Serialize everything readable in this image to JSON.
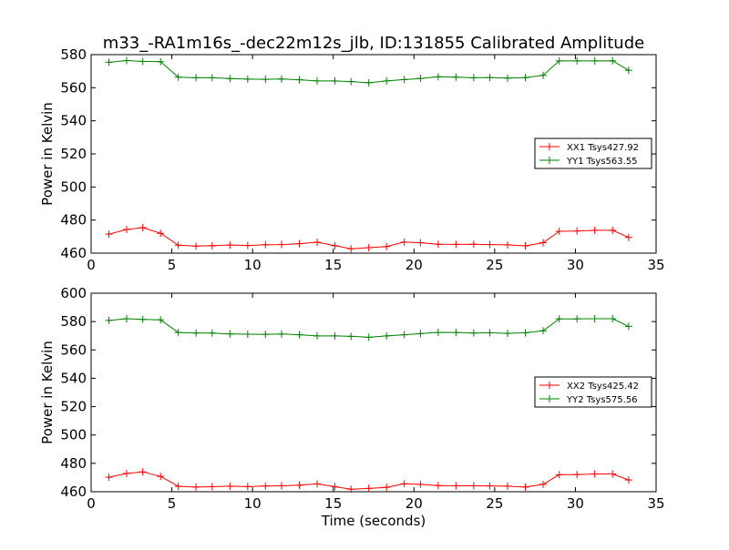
{
  "figure": {
    "title": "m33_-RA1m16s_-dec22m12s_jlb, ID:131855 Calibrated Amplitude"
  },
  "chart_data": [
    {
      "type": "line",
      "title": "m33_-RA1m16s_-dec22m12s_jlb, ID:131855 Calibrated Amplitude",
      "xlabel": "",
      "ylabel": "Power in Kelvin",
      "xlim": [
        0,
        35
      ],
      "ylim": [
        460,
        580
      ],
      "xticks": [
        0,
        5,
        10,
        15,
        20,
        25,
        30,
        35
      ],
      "yticks": [
        460,
        480,
        500,
        520,
        540,
        560,
        580
      ],
      "grid": false,
      "legend_position": "center-right",
      "x": [
        1.1,
        2.2,
        3.2,
        4.3,
        5.4,
        6.5,
        7.5,
        8.6,
        9.7,
        10.8,
        11.8,
        12.9,
        14.0,
        15.1,
        16.1,
        17.2,
        18.3,
        19.4,
        20.4,
        21.5,
        22.6,
        23.7,
        24.7,
        25.8,
        26.9,
        28.0,
        29.0,
        30.1,
        31.2,
        32.3,
        33.3
      ],
      "series": [
        {
          "name": "XX1 Tsys427.92",
          "color": "#ff0000",
          "values": [
            471.5,
            474.3,
            475.4,
            472.0,
            464.8,
            464.3,
            464.5,
            464.9,
            464.6,
            465.1,
            465.2,
            465.7,
            466.6,
            464.5,
            462.6,
            463.3,
            464.0,
            466.7,
            466.3,
            465.4,
            465.3,
            465.4,
            465.2,
            465.0,
            464.4,
            466.3,
            473.2,
            473.4,
            473.8,
            473.8,
            469.5
          ]
        },
        {
          "name": "YY1 Tsys563.55",
          "color": "#008000",
          "values": [
            575.4,
            576.4,
            575.9,
            575.7,
            566.4,
            566.0,
            566.0,
            565.5,
            565.2,
            565.1,
            565.3,
            564.8,
            564.1,
            564.1,
            563.7,
            563.0,
            564.1,
            564.9,
            565.6,
            566.6,
            566.4,
            566.0,
            566.2,
            565.8,
            566.1,
            567.5,
            576.2,
            576.2,
            576.2,
            576.3,
            570.5
          ]
        }
      ]
    },
    {
      "type": "line",
      "title": "",
      "xlabel": "Time (seconds)",
      "ylabel": "Power in Kelvin",
      "xlim": [
        0,
        35
      ],
      "ylim": [
        460,
        600
      ],
      "xticks": [
        0,
        5,
        10,
        15,
        20,
        25,
        30,
        35
      ],
      "yticks": [
        460,
        480,
        500,
        520,
        540,
        560,
        580,
        600
      ],
      "grid": false,
      "legend_position": "center-right",
      "x": [
        1.1,
        2.2,
        3.2,
        4.3,
        5.4,
        6.5,
        7.5,
        8.6,
        9.7,
        10.8,
        11.8,
        12.9,
        14.0,
        15.1,
        16.1,
        17.2,
        18.3,
        19.4,
        20.4,
        21.5,
        22.6,
        23.7,
        24.7,
        25.8,
        26.9,
        28.0,
        29.0,
        30.1,
        31.2,
        32.3,
        33.3
      ],
      "series": [
        {
          "name": "XX2 Tsys425.42",
          "color": "#ff0000",
          "values": [
            470.2,
            472.9,
            474.0,
            470.8,
            463.8,
            463.3,
            463.5,
            463.9,
            463.6,
            464.0,
            464.2,
            464.6,
            465.5,
            463.5,
            461.8,
            462.3,
            463.1,
            465.6,
            465.2,
            464.3,
            464.2,
            464.2,
            464.1,
            463.9,
            463.3,
            465.2,
            472.0,
            472.1,
            472.5,
            472.5,
            468.3
          ]
        },
        {
          "name": "YY2 Tsys575.56",
          "color": "#008000",
          "values": [
            580.8,
            582.0,
            581.5,
            581.2,
            572.3,
            571.9,
            571.9,
            571.3,
            571.1,
            571.0,
            571.2,
            570.7,
            569.9,
            569.9,
            569.6,
            568.9,
            569.9,
            570.7,
            571.5,
            572.4,
            572.3,
            571.9,
            572.1,
            571.7,
            572.1,
            573.5,
            581.9,
            581.9,
            582.0,
            582.0,
            576.6
          ]
        }
      ]
    }
  ]
}
